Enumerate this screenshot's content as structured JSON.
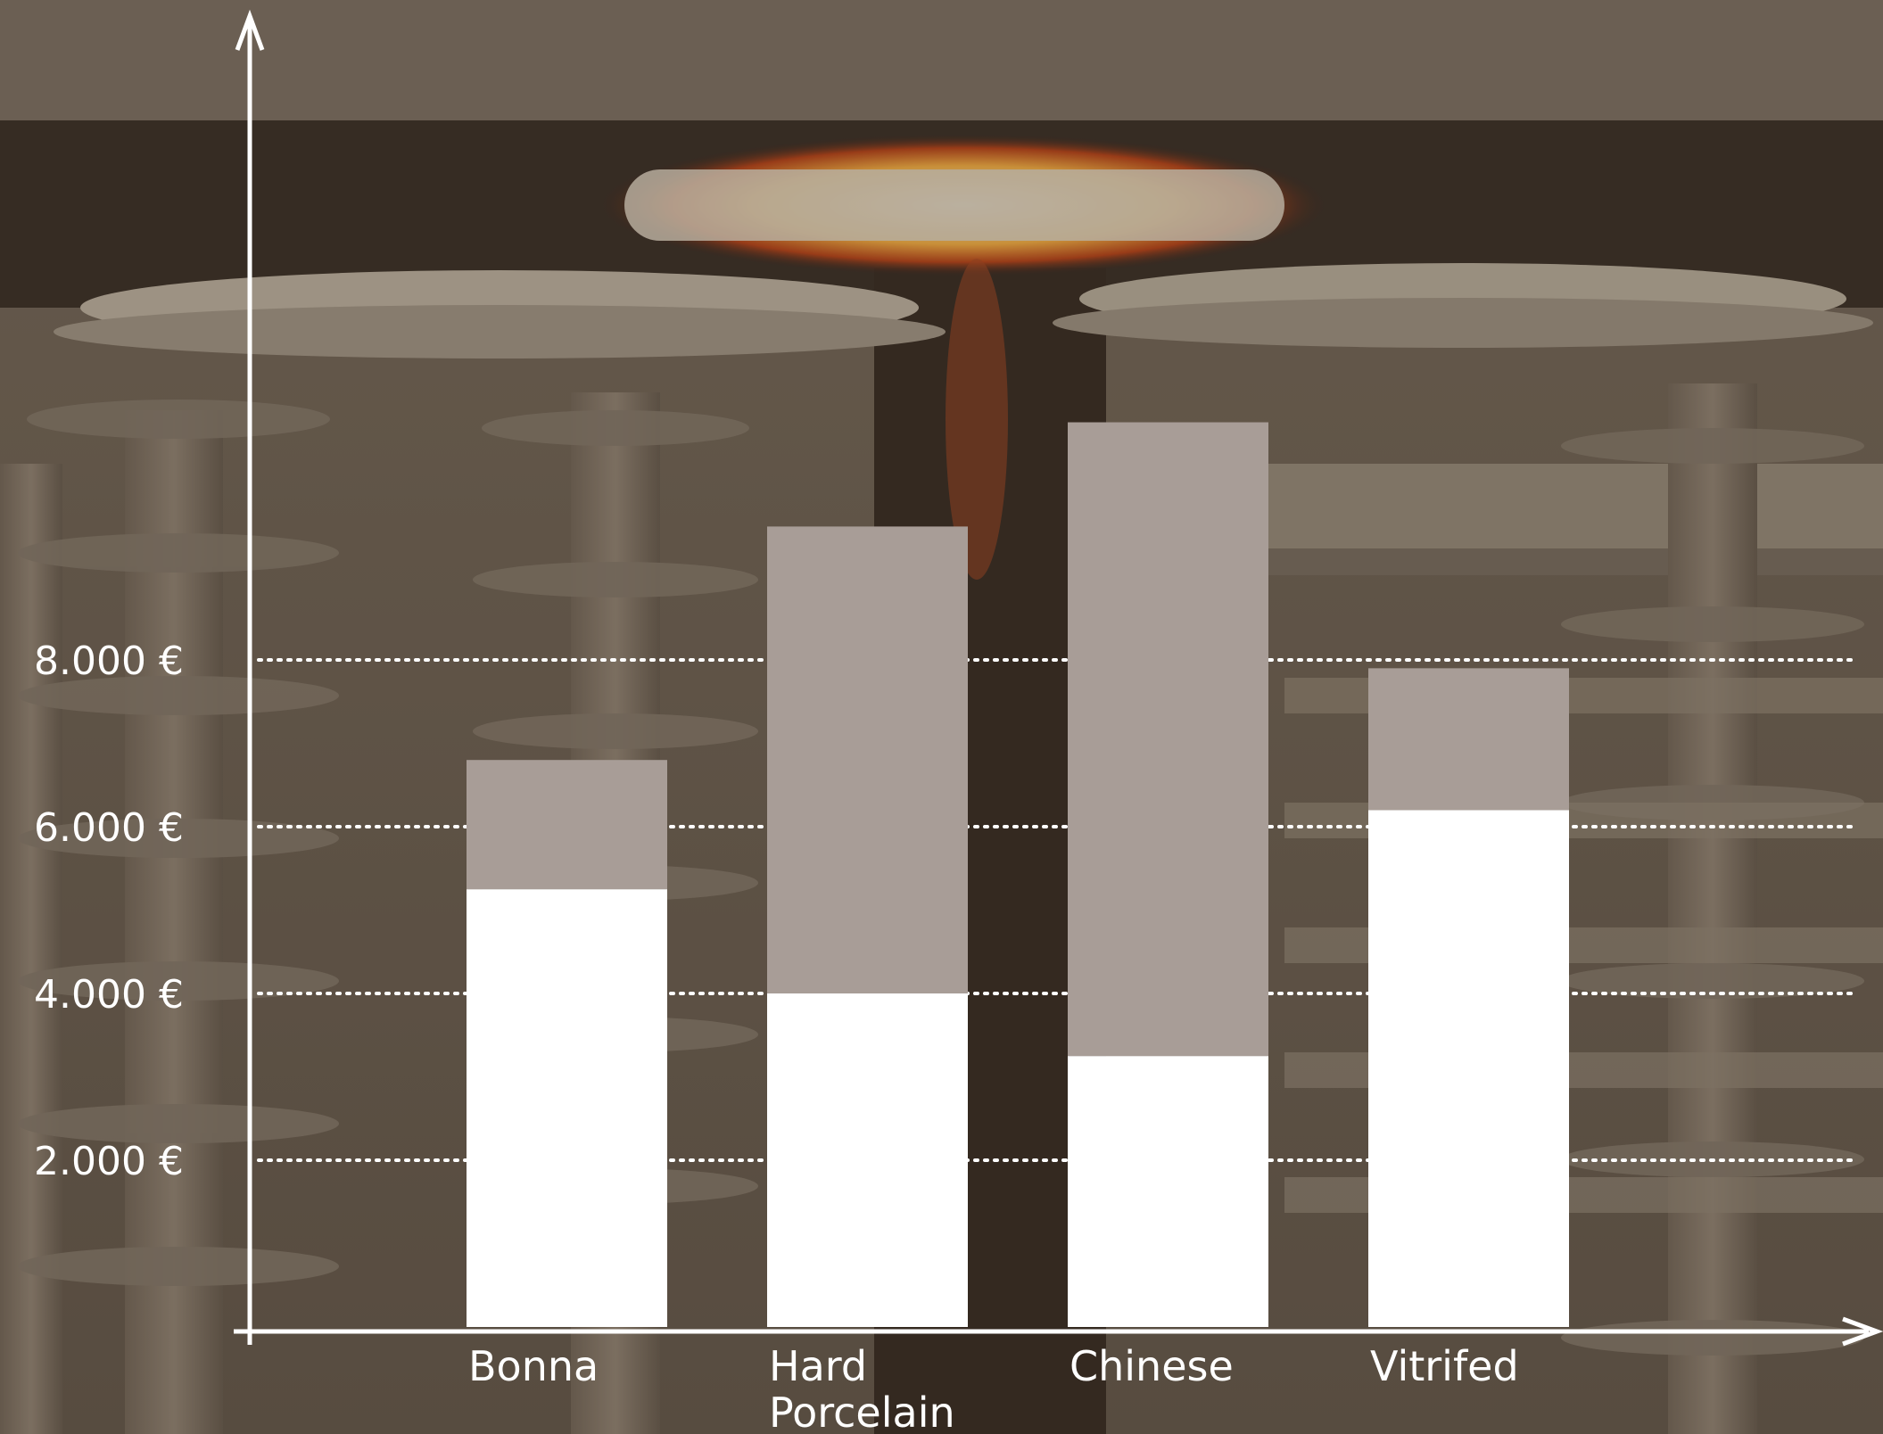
{
  "chart_data": {
    "type": "bar",
    "stacked": true,
    "categories": [
      "Bonna",
      "Hard Porcelain",
      "Chinese",
      "Vitrifed"
    ],
    "category_lines": [
      [
        "Bonna"
      ],
      [
        "Hard",
        "Porcelain"
      ],
      [
        "Chinese"
      ],
      [
        "Vitrifed"
      ]
    ],
    "series": [
      {
        "values": [
          5250,
          4000,
          3250,
          6200
        ],
        "color": "#ffffff"
      },
      {
        "values": [
          1550,
          5600,
          7600,
          1700
        ],
        "color": "#a89d97"
      }
    ],
    "y_ticks": [
      2000,
      4000,
      6000,
      8000
    ],
    "y_tick_labels": [
      "2.000 €",
      "4.000 €",
      "6.000 €",
      "8.000 €"
    ],
    "ylim": [
      0,
      15000
    ],
    "grid": "dotted",
    "title": "",
    "xlabel": "",
    "ylabel": ""
  }
}
